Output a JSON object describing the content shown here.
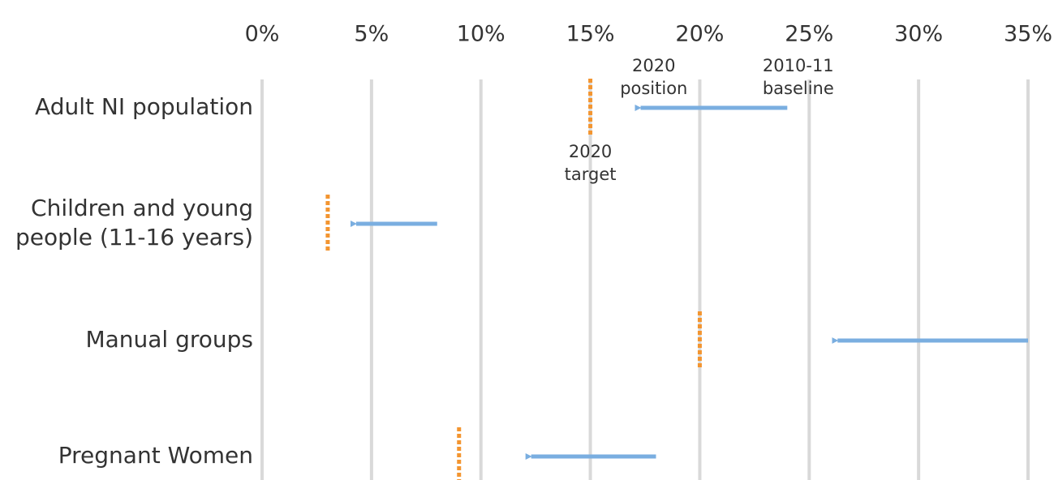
{
  "chart_data": {
    "type": "arrow-dot",
    "title": "",
    "xlabel": "",
    "ylabel": "",
    "xlim": [
      0,
      35
    ],
    "x_ticks": [
      "0%",
      "5%",
      "10%",
      "15%",
      "20%",
      "25%",
      "30%",
      "35%"
    ],
    "x_tick_values": [
      0,
      5,
      10,
      15,
      20,
      25,
      30,
      35
    ],
    "x_unit": "%",
    "grid": true,
    "categories": [
      [
        "Adult NI population"
      ],
      [
        "Children and young",
        "people (11-16 years)"
      ],
      [
        "Manual groups"
      ],
      [
        "Pregnant Women"
      ]
    ],
    "series": [
      {
        "values": [
          24,
          8,
          35,
          18
        ]
      },
      {
        "values": [
          17,
          4,
          26,
          12
        ]
      },
      {
        "values": [
          15,
          3,
          20,
          9
        ]
      }
    ],
    "annotations": [
      {
        "lines": [
          "2020",
          "position"
        ]
      },
      {
        "lines": [
          "2010-11",
          "baseline"
        ]
      },
      {
        "lines": [
          "2020",
          "target"
        ]
      }
    ],
    "colors": {
      "arrow": "#7aaee0",
      "target": "#f39530",
      "grid": "#d9d9d9",
      "text": "#333333"
    }
  }
}
